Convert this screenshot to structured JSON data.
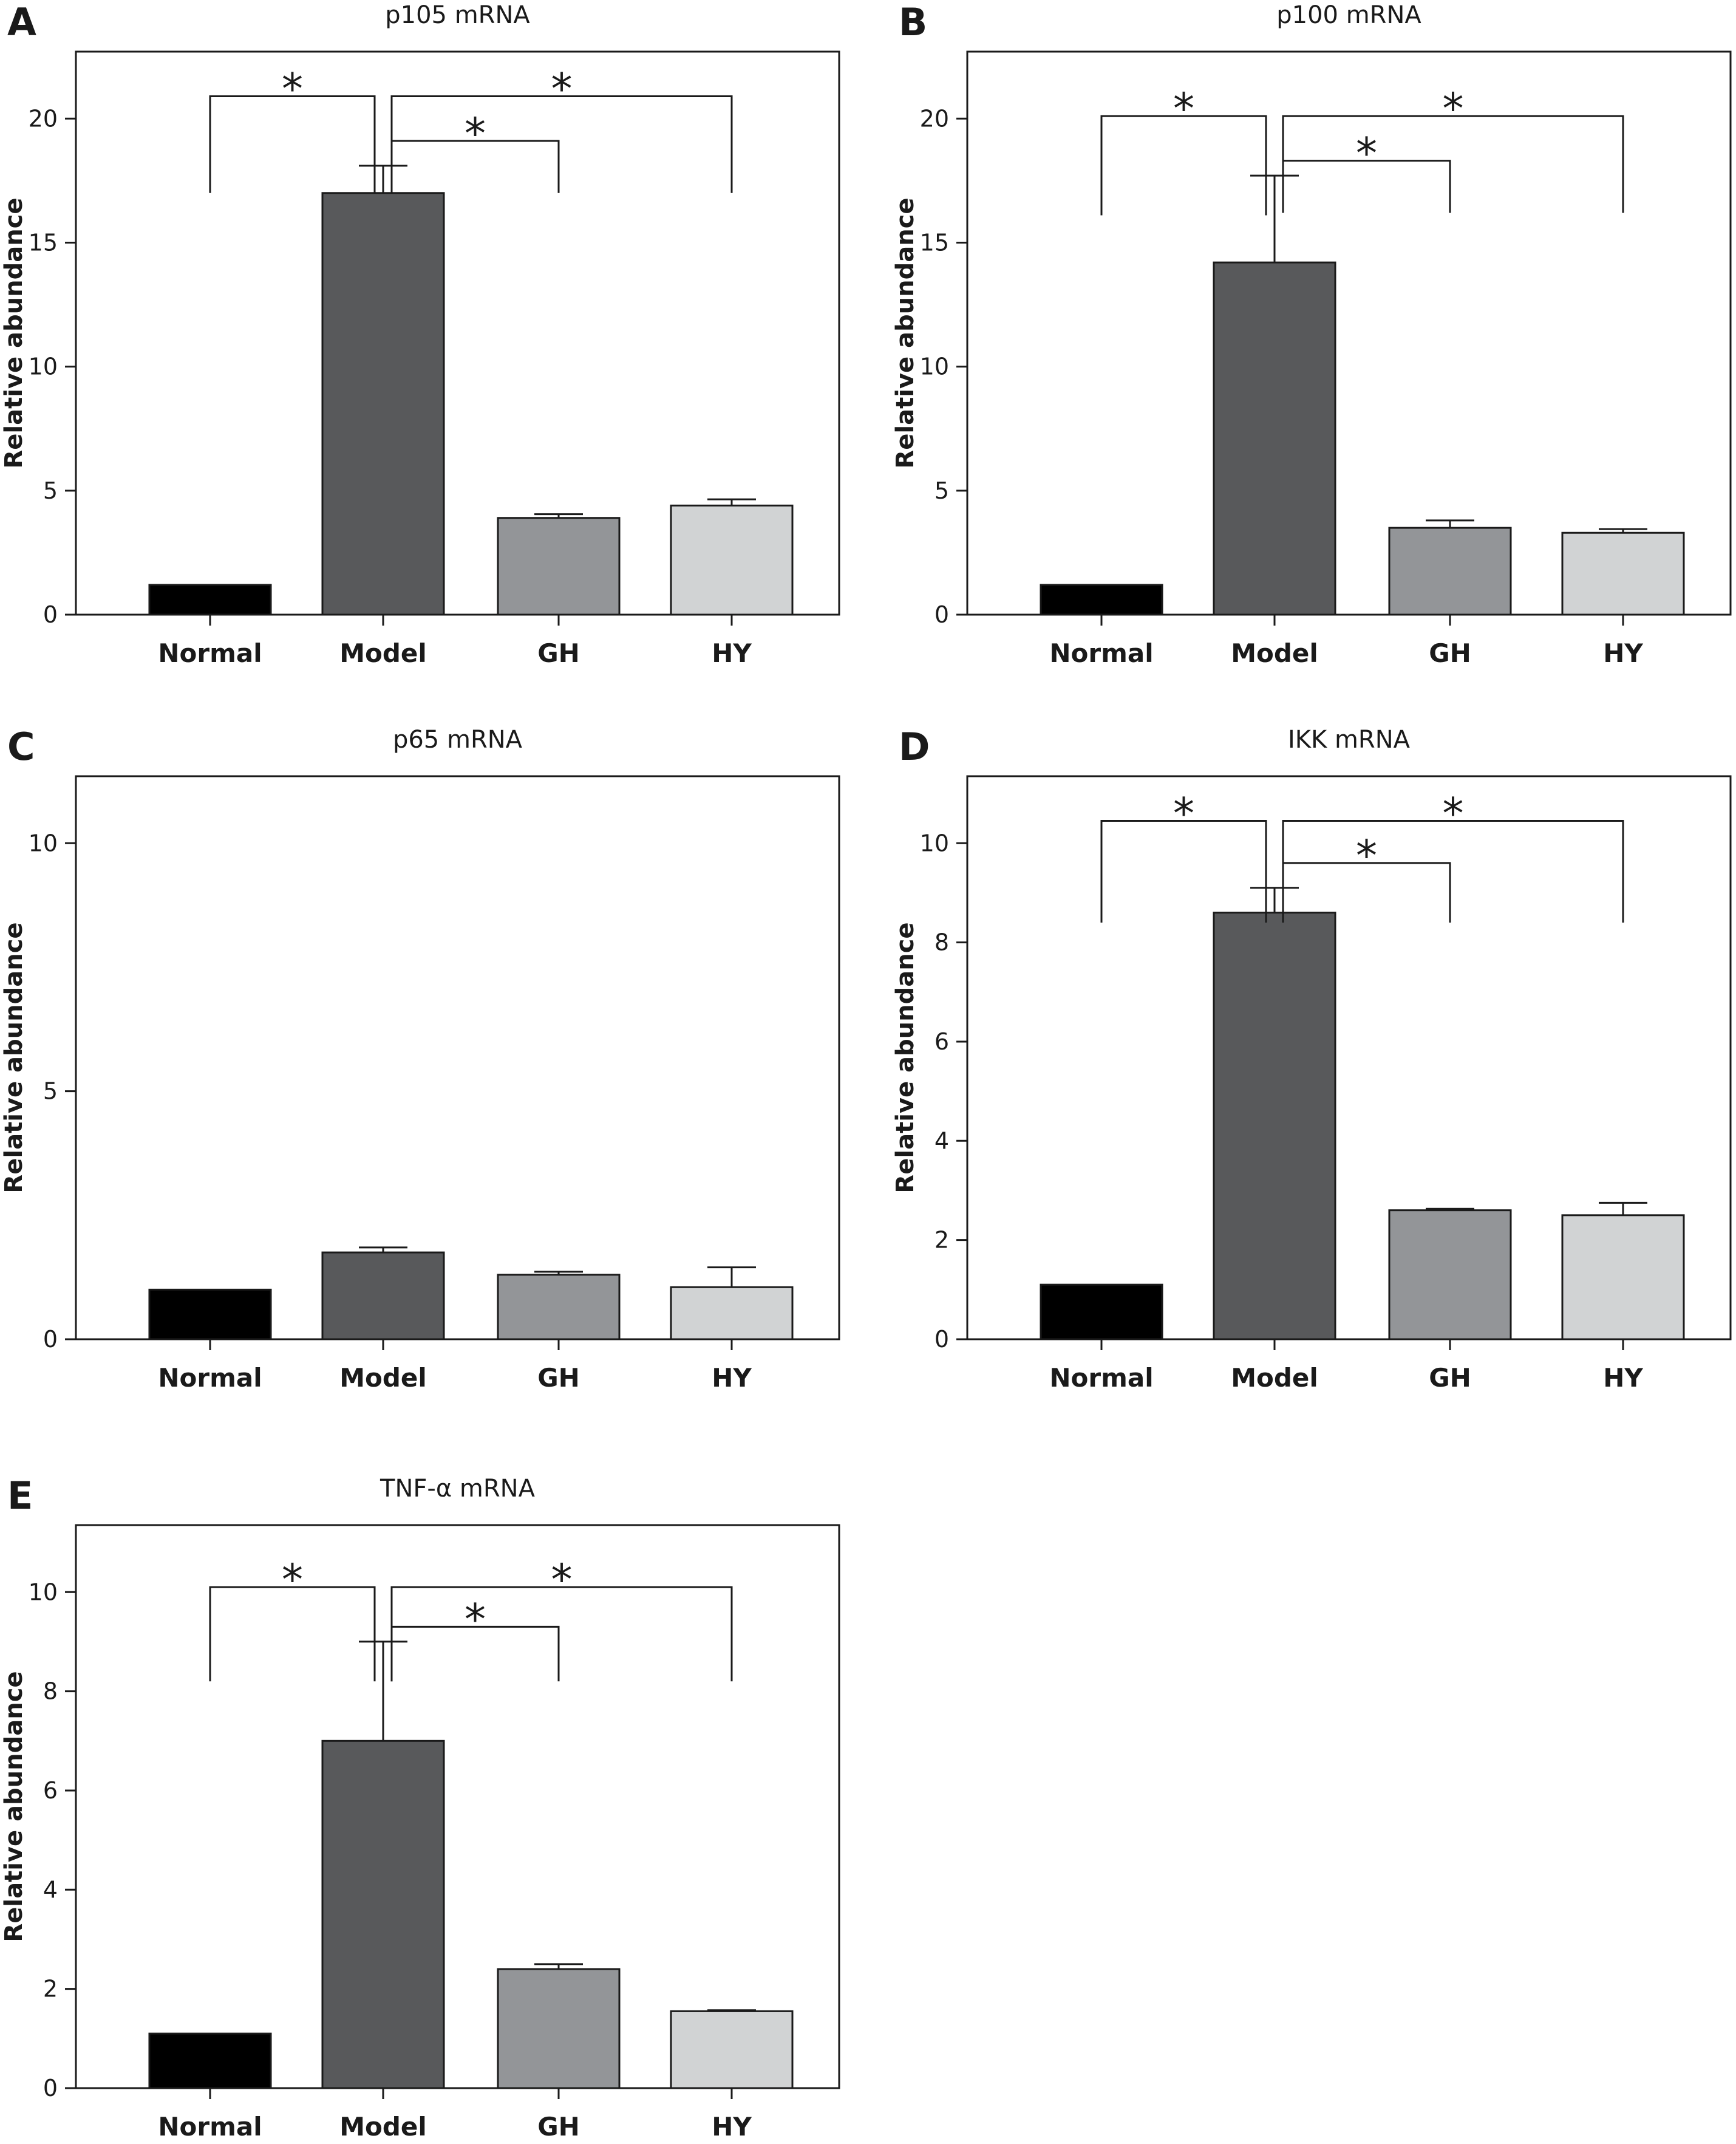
{
  "categories": [
    "Normal",
    "Model",
    "GH",
    "HY"
  ],
  "ylabel": "Relative abundance",
  "significance_marker": "*",
  "colors": {
    "Normal": "#000000",
    "Model": "#58595b",
    "GH": "#939598",
    "HY": "#d1d3d4",
    "axis": "#1a1a1a"
  },
  "chart_data": [
    {
      "panel": "A",
      "type": "bar",
      "title": "p105 mRNA",
      "categories": [
        "Normal",
        "Model",
        "GH",
        "HY"
      ],
      "values": [
        1.2,
        17.0,
        3.9,
        4.4
      ],
      "errors": [
        0.0,
        1.1,
        0.15,
        0.25
      ],
      "ylabel": "Relative abundance",
      "ylim": [
        0,
        22.7
      ],
      "yticks": [
        0,
        5,
        10,
        15,
        20
      ],
      "significance": [
        {
          "from": "Model",
          "to": "Normal",
          "label": "*",
          "level": 20.9,
          "drop": 17.0
        },
        {
          "from": "Model",
          "to": "HY",
          "label": "*",
          "level": 20.9,
          "drop": 17.0
        },
        {
          "from": "Model",
          "to": "GH",
          "label": "*",
          "level": 19.1,
          "drop": 17.0
        }
      ]
    },
    {
      "panel": "B",
      "type": "bar",
      "title": "p100 mRNA",
      "categories": [
        "Normal",
        "Model",
        "GH",
        "HY"
      ],
      "values": [
        1.2,
        14.2,
        3.5,
        3.3
      ],
      "errors": [
        0.0,
        3.5,
        0.3,
        0.15
      ],
      "ylabel": "Relative abundance",
      "ylim": [
        0,
        22.7
      ],
      "yticks": [
        0,
        5,
        10,
        15,
        20
      ],
      "significance": [
        {
          "from": "Model",
          "to": "Normal",
          "label": "*",
          "level": 20.1,
          "drop": 16.1
        },
        {
          "from": "Model",
          "to": "HY",
          "label": "*",
          "level": 20.1,
          "drop": 16.2
        },
        {
          "from": "Model",
          "to": "GH",
          "label": "*",
          "level": 18.3,
          "drop": 16.2
        }
      ]
    },
    {
      "panel": "C",
      "type": "bar",
      "title": "p65 mRNA",
      "categories": [
        "Normal",
        "Model",
        "GH",
        "HY"
      ],
      "values": [
        1.0,
        1.75,
        1.3,
        1.05
      ],
      "errors": [
        0.0,
        0.1,
        0.06,
        0.4
      ],
      "ylabel": "Relative abundance",
      "ylim": [
        0,
        11.35
      ],
      "yticks": [
        0,
        5,
        10
      ],
      "significance": []
    },
    {
      "panel": "D",
      "type": "bar",
      "title": "IKK mRNA",
      "categories": [
        "Normal",
        "Model",
        "GH",
        "HY"
      ],
      "values": [
        1.1,
        8.6,
        2.6,
        2.5
      ],
      "errors": [
        0.0,
        0.5,
        0.03,
        0.25
      ],
      "ylabel": "Relative abundance",
      "ylim": [
        0,
        11.35
      ],
      "yticks": [
        0,
        2,
        4,
        6,
        8,
        10
      ],
      "significance": [
        {
          "from": "Model",
          "to": "Normal",
          "label": "*",
          "level": 10.45,
          "drop": 8.4
        },
        {
          "from": "Model",
          "to": "HY",
          "label": "*",
          "level": 10.45,
          "drop": 8.4
        },
        {
          "from": "Model",
          "to": "GH",
          "label": "*",
          "level": 9.6,
          "drop": 8.4
        }
      ]
    },
    {
      "panel": "E",
      "type": "bar",
      "title": "TNF-α mRNA",
      "categories": [
        "Normal",
        "Model",
        "GH",
        "HY"
      ],
      "values": [
        1.1,
        7.0,
        2.4,
        1.55
      ],
      "errors": [
        0.0,
        2.0,
        0.1,
        0.02
      ],
      "ylabel": "Relative abundance",
      "ylim": [
        0,
        11.35
      ],
      "yticks": [
        0,
        2,
        4,
        6,
        8,
        10
      ],
      "significance": [
        {
          "from": "Model",
          "to": "Normal",
          "label": "*",
          "level": 10.1,
          "drop": 8.2
        },
        {
          "from": "Model",
          "to": "HY",
          "label": "*",
          "level": 10.1,
          "drop": 8.2
        },
        {
          "from": "Model",
          "to": "GH",
          "label": "*",
          "level": 9.3,
          "drop": 8.2
        }
      ]
    }
  ]
}
